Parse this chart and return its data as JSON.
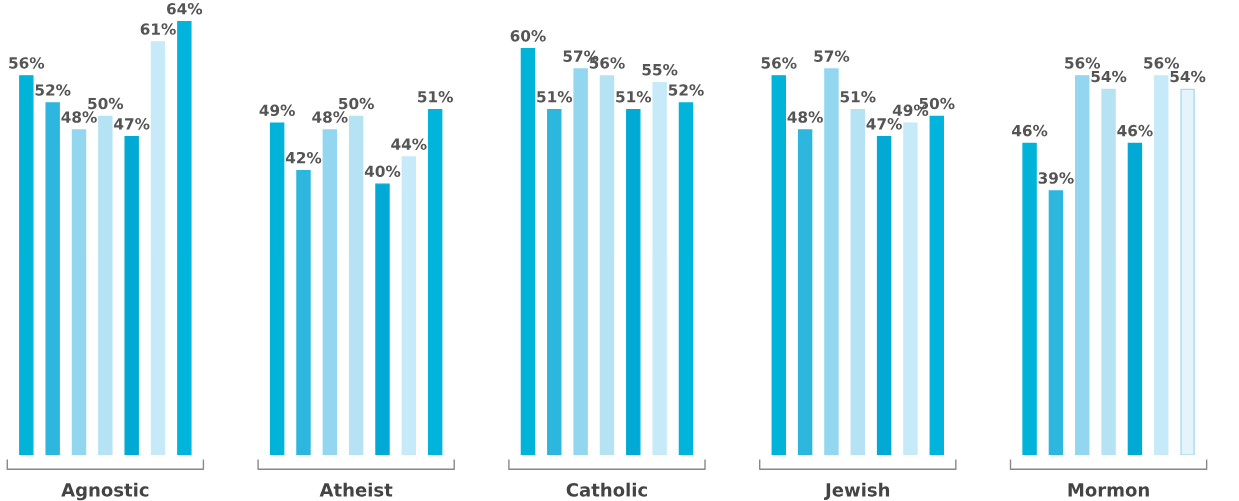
{
  "chart_data": {
    "type": "bar",
    "categories": [
      "Agnostic",
      "Atheist",
      "Catholic",
      "Jewish",
      "Mormon"
    ],
    "series": [
      {
        "color": "#00b3d9",
        "values": [
          56,
          49,
          60,
          56,
          46
        ],
        "value_labels": [
          "56%",
          "49%",
          "60%",
          "56%",
          "46%"
        ]
      },
      {
        "color": "#2db6de",
        "values": [
          52,
          42,
          51,
          48,
          39
        ],
        "value_labels": [
          "52%",
          "42%",
          "51%",
          "48%",
          "39%"
        ]
      },
      {
        "color": "#92d7ef",
        "values": [
          48,
          48,
          57,
          57,
          56
        ],
        "value_labels": [
          "48%",
          "48%",
          "57%",
          "57%",
          "56%"
        ]
      },
      {
        "color": "#b5e3f4",
        "values": [
          50,
          50,
          56,
          51,
          54
        ],
        "value_labels": [
          "50%",
          "50%",
          "56%",
          "51%",
          "54%"
        ]
      },
      {
        "color": "#00aad5",
        "values": [
          47,
          40,
          51,
          47,
          46
        ],
        "value_labels": [
          "47%",
          "40%",
          "51%",
          "47%",
          "46%"
        ]
      },
      {
        "color": "#c6eaf7",
        "values": [
          61,
          44,
          55,
          49,
          56
        ],
        "value_labels": [
          "61%",
          "44%",
          "55%",
          "49%",
          "56%"
        ]
      },
      {
        "colors": [
          "#00b4dc",
          "#00b4dc",
          "#00b4dc",
          "#00b4dc",
          "#e4f4fa"
        ],
        "values": [
          64,
          51,
          52,
          50,
          54
        ],
        "value_labels": [
          "64%",
          "51%",
          "52%",
          "50%",
          "54%"
        ]
      }
    ],
    "grid": false,
    "legend": false
  }
}
